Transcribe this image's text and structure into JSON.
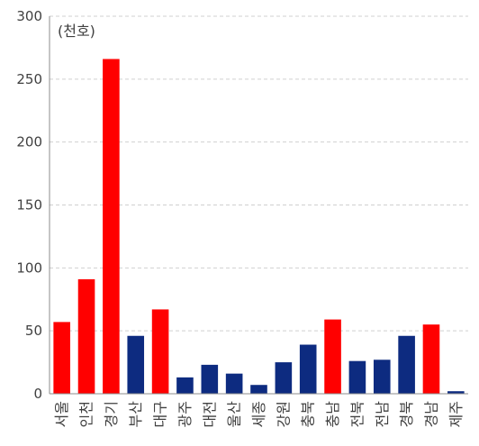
{
  "chart_data": {
    "type": "bar",
    "unit_label": "(천호)",
    "categories": [
      "서울",
      "인천",
      "경기",
      "부산",
      "대구",
      "광주",
      "대전",
      "울산",
      "세종",
      "강원",
      "충북",
      "충남",
      "전북",
      "전남",
      "경북",
      "경남",
      "제주"
    ],
    "values": [
      57,
      91,
      266,
      46,
      67,
      13,
      23,
      16,
      7,
      25,
      39,
      59,
      26,
      27,
      46,
      55,
      2
    ],
    "highlight": [
      true,
      true,
      true,
      false,
      true,
      false,
      false,
      false,
      false,
      false,
      false,
      true,
      false,
      false,
      false,
      true,
      false
    ],
    "colors": {
      "highlight": "#ff0000",
      "normal": "#0d2b80"
    },
    "yticks": [
      "0",
      "50",
      "100",
      "150",
      "200",
      "250",
      "300"
    ],
    "ylim": [
      0,
      300
    ],
    "grid": true,
    "legend": "none"
  }
}
